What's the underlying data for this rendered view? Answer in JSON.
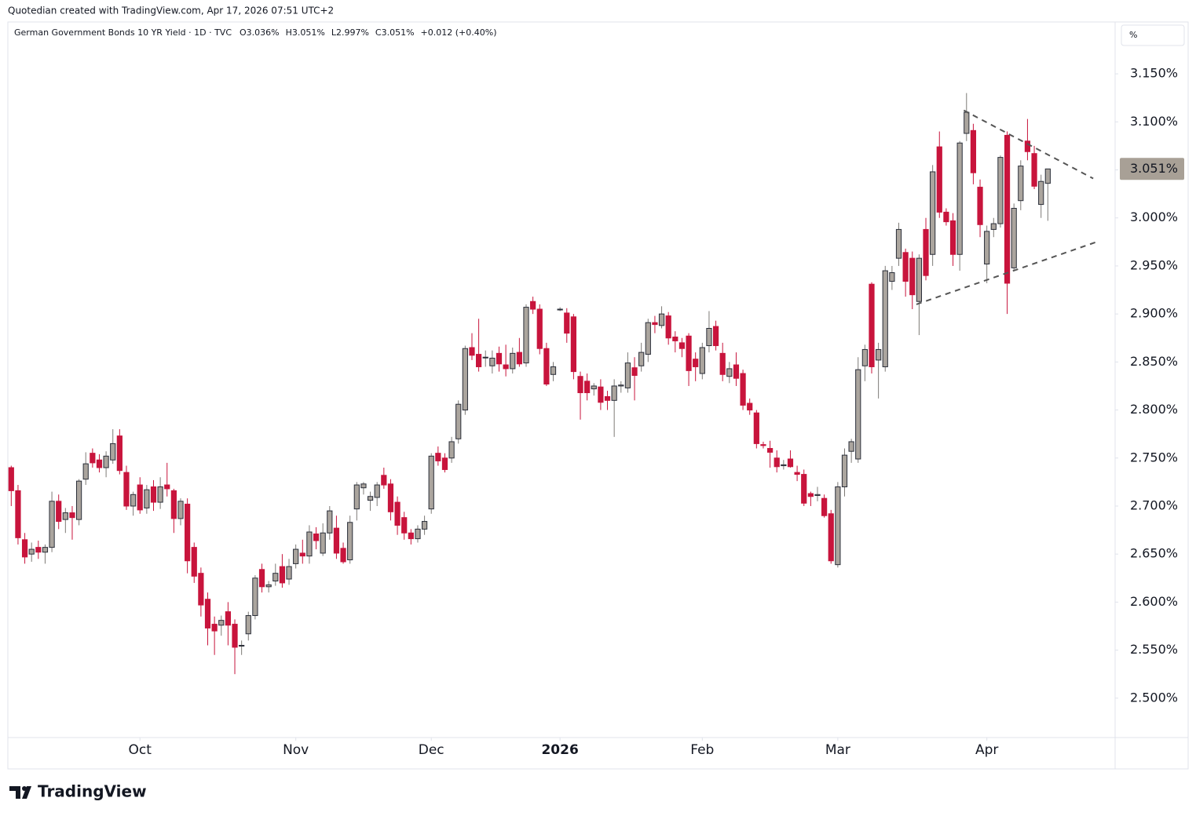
{
  "caption": "Quotedian created with TradingView.com, Apr 17, 2026 07:51 UTC+2",
  "brand": "TradingView",
  "scale_mode": "%",
  "chart_data": {
    "type": "candlestick",
    "title": "German Government Bonds 10 YR Yield · 1D · TVC",
    "legend_values": [
      "O3.036%",
      "H3.051%",
      "L2.997%",
      "C3.051%",
      "+0.012 (+0.40%)"
    ],
    "up_color": "#aba59e",
    "down_color": "#c8143c",
    "up_border": "#2a2e39",
    "open": [
      2.74,
      2.716,
      2.665,
      2.65,
      2.657,
      2.652,
      2.657,
      2.705,
      2.686,
      2.693,
      2.686,
      2.728,
      2.755,
      2.748,
      2.74,
      2.748,
      2.773,
      2.735,
      2.7,
      2.722,
      2.698,
      2.72,
      2.704,
      2.722,
      2.716,
      2.687,
      2.702,
      2.657,
      2.63,
      2.603,
      2.577,
      2.576,
      2.59,
      2.577,
      2.555,
      2.567,
      2.586,
      2.634,
      2.616,
      2.622,
      2.637,
      2.624,
      2.64,
      2.651,
      2.648,
      2.671,
      2.651,
      2.672,
      2.677,
      2.656,
      2.644,
      2.697,
      2.719,
      2.706,
      2.709,
      2.732,
      2.723,
      2.704,
      2.688,
      2.672,
      2.666,
      2.676,
      2.697,
      2.755,
      2.75,
      2.75,
      2.77,
      2.8,
      2.865,
      2.858,
      2.855,
      2.846,
      2.859,
      2.847,
      2.843,
      2.86,
      2.849,
      2.913,
      2.905,
      2.864,
      2.837,
      2.905,
      2.901,
      2.897,
      2.835,
      2.83,
      2.822,
      2.824,
      2.814,
      2.81,
      2.825,
      2.823,
      2.844,
      2.846,
      2.858,
      2.891,
      2.888,
      2.898,
      2.876,
      2.87,
      2.877,
      2.853,
      2.838,
      2.867,
      2.887,
      2.859,
      2.835,
      2.847,
      2.838,
      2.807,
      2.797,
      2.764,
      2.76,
      2.75,
      2.742,
      2.749,
      2.735,
      2.733,
      2.713,
      2.711,
      2.708,
      2.692,
      2.639,
      2.72,
      2.757,
      2.749,
      2.846,
      2.931,
      2.852,
      2.845,
      2.934,
      2.958,
      2.964,
      2.958,
      2.913,
      2.988,
      2.962,
      3.074,
      3.006,
      2.997,
      2.962,
      3.088,
      3.091,
      3.032,
      2.952,
      2.988,
      2.994,
      3.086,
      2.948,
      3.018,
      3.08,
      3.067,
      3.014,
      3.036
    ],
    "high": [
      2.742,
      2.722,
      2.672,
      2.662,
      2.664,
      2.66,
      2.715,
      2.712,
      2.698,
      2.7,
      2.728,
      2.756,
      2.76,
      2.754,
      2.757,
      2.78,
      2.78,
      2.742,
      2.715,
      2.73,
      2.722,
      2.727,
      2.73,
      2.745,
      2.718,
      2.708,
      2.708,
      2.662,
      2.636,
      2.61,
      2.585,
      2.586,
      2.6,
      2.582,
      2.56,
      2.59,
      2.628,
      2.64,
      2.622,
      2.64,
      2.65,
      2.645,
      2.66,
      2.665,
      2.68,
      2.678,
      2.682,
      2.7,
      2.69,
      2.662,
      2.69,
      2.725,
      2.725,
      2.715,
      2.725,
      2.74,
      2.728,
      2.71,
      2.694,
      2.676,
      2.68,
      2.69,
      2.755,
      2.762,
      2.755,
      2.772,
      2.81,
      2.867,
      2.88,
      2.895,
      2.862,
      2.862,
      2.866,
      2.868,
      2.865,
      2.875,
      2.91,
      2.918,
      2.91,
      2.87,
      2.85,
      2.907,
      2.906,
      2.9,
      2.84,
      2.838,
      2.828,
      2.832,
      2.82,
      2.832,
      2.83,
      2.86,
      2.855,
      2.87,
      2.895,
      2.898,
      2.908,
      2.902,
      2.882,
      2.875,
      2.88,
      2.86,
      2.87,
      2.903,
      2.893,
      2.87,
      2.85,
      2.86,
      2.842,
      2.812,
      2.8,
      2.767,
      2.768,
      2.758,
      2.748,
      2.758,
      2.742,
      2.738,
      2.715,
      2.72,
      2.712,
      2.696,
      2.725,
      2.76,
      2.77,
      2.855,
      2.868,
      2.933,
      2.87,
      2.95,
      2.95,
      2.995,
      2.968,
      2.965,
      2.962,
      3.0,
      3.055,
      3.09,
      3.01,
      3.005,
      3.08,
      3.13,
      3.098,
      3.04,
      2.992,
      3.0,
      3.065,
      3.09,
      3.015,
      3.06,
      3.103,
      3.075,
      3.045,
      3.051
    ],
    "low": [
      2.7,
      2.66,
      2.64,
      2.642,
      2.645,
      2.64,
      2.652,
      2.676,
      2.672,
      2.665,
      2.68,
      2.722,
      2.74,
      2.735,
      2.73,
      2.744,
      2.733,
      2.696,
      2.69,
      2.692,
      2.692,
      2.695,
      2.697,
      2.71,
      2.672,
      2.68,
      2.63,
      2.62,
      2.585,
      2.555,
      2.545,
      2.565,
      2.555,
      2.525,
      2.545,
      2.56,
      2.582,
      2.61,
      2.61,
      2.617,
      2.615,
      2.618,
      2.635,
      2.64,
      2.64,
      2.655,
      2.648,
      2.665,
      2.645,
      2.64,
      2.64,
      2.685,
      2.712,
      2.695,
      2.7,
      2.718,
      2.685,
      2.67,
      2.665,
      2.66,
      2.662,
      2.67,
      2.692,
      2.742,
      2.735,
      2.745,
      2.765,
      2.795,
      2.852,
      2.84,
      2.845,
      2.838,
      2.84,
      2.835,
      2.838,
      2.845,
      2.845,
      2.9,
      2.858,
      2.825,
      2.83,
      2.903,
      2.87,
      2.832,
      2.79,
      2.81,
      2.815,
      2.8,
      2.8,
      2.772,
      2.818,
      2.818,
      2.81,
      2.84,
      2.85,
      2.88,
      2.885,
      2.868,
      2.86,
      2.855,
      2.825,
      2.83,
      2.832,
      2.86,
      2.862,
      2.83,
      2.828,
      2.825,
      2.8,
      2.795,
      2.76,
      2.76,
      2.74,
      2.735,
      2.738,
      2.74,
      2.726,
      2.7,
      2.7,
      2.705,
      2.688,
      2.64,
      2.636,
      2.71,
      2.745,
      2.745,
      2.83,
      2.838,
      2.812,
      2.84,
      2.925,
      2.95,
      2.918,
      2.905,
      2.878,
      2.935,
      2.95,
      3.0,
      2.992,
      2.95,
      2.945,
      3.08,
      3.035,
      2.98,
      2.932,
      2.98,
      2.99,
      2.9,
      2.945,
      3.008,
      3.06,
      3.03,
      3.0,
      2.997
    ],
    "close": [
      2.716,
      2.667,
      2.647,
      2.655,
      2.652,
      2.657,
      2.705,
      2.684,
      2.693,
      2.688,
      2.726,
      2.744,
      2.745,
      2.74,
      2.752,
      2.765,
      2.737,
      2.7,
      2.712,
      2.696,
      2.717,
      2.704,
      2.72,
      2.718,
      2.687,
      2.705,
      2.643,
      2.627,
      2.597,
      2.573,
      2.57,
      2.581,
      2.576,
      2.553,
      2.555,
      2.586,
      2.625,
      2.616,
      2.618,
      2.63,
      2.62,
      2.637,
      2.655,
      2.648,
      2.673,
      2.664,
      2.672,
      2.695,
      2.651,
      2.642,
      2.683,
      2.722,
      2.723,
      2.71,
      2.722,
      2.722,
      2.694,
      2.68,
      2.672,
      2.666,
      2.676,
      2.684,
      2.752,
      2.747,
      2.738,
      2.767,
      2.806,
      2.864,
      2.857,
      2.845,
      2.855,
      2.854,
      2.848,
      2.843,
      2.859,
      2.848,
      2.907,
      2.905,
      2.864,
      2.827,
      2.845,
      2.905,
      2.88,
      2.84,
      2.818,
      2.818,
      2.825,
      2.808,
      2.81,
      2.825,
      2.826,
      2.849,
      2.836,
      2.86,
      2.891,
      2.889,
      2.9,
      2.875,
      2.872,
      2.864,
      2.841,
      2.845,
      2.865,
      2.885,
      2.867,
      2.837,
      2.843,
      2.833,
      2.805,
      2.8,
      2.765,
      2.763,
      2.756,
      2.741,
      2.743,
      2.741,
      2.733,
      2.703,
      2.71,
      2.712,
      2.69,
      2.643,
      2.72,
      2.753,
      2.767,
      2.842,
      2.863,
      2.845,
      2.863,
      2.945,
      2.943,
      2.988,
      2.934,
      2.92,
      2.958,
      2.94,
      3.048,
      3.006,
      2.996,
      2.962,
      3.078,
      3.11,
      3.047,
      2.993,
      2.986,
      2.994,
      3.063,
      2.932,
      3.01,
      3.054,
      3.069,
      3.033,
      3.038,
      3.051
    ],
    "xlim": [
      -0.5,
      162.7
    ],
    "xticks": [
      {
        "value": 19,
        "label": "Oct"
      },
      {
        "value": 42,
        "label": "Nov"
      },
      {
        "value": 62,
        "label": "Dec"
      },
      {
        "value": 81,
        "label": "2026"
      },
      {
        "value": 102,
        "label": "Feb"
      },
      {
        "value": 122,
        "label": "Mar"
      },
      {
        "value": 144,
        "label": "Apr"
      }
    ],
    "ylim": [
      2.459,
      3.204
    ],
    "yticks": [
      {
        "value": 2.5,
        "label": "2.500%"
      },
      {
        "value": 2.55,
        "label": "2.550%"
      },
      {
        "value": 2.6,
        "label": "2.600%"
      },
      {
        "value": 2.65,
        "label": "2.650%"
      },
      {
        "value": 2.7,
        "label": "2.700%"
      },
      {
        "value": 2.75,
        "label": "2.750%"
      },
      {
        "value": 2.8,
        "label": "2.800%"
      },
      {
        "value": 2.85,
        "label": "2.850%"
      },
      {
        "value": 2.9,
        "label": "2.900%"
      },
      {
        "value": 2.95,
        "label": "2.950%"
      },
      {
        "value": 3.0,
        "label": "3.000%"
      },
      {
        "value": 3.05,
        "label": "3.050%"
      },
      {
        "value": 3.1,
        "label": "3.100%"
      },
      {
        "value": 3.15,
        "label": "3.150%"
      }
    ],
    "last_price": {
      "value": 3.051,
      "label": "3.051%"
    },
    "trendlines": [
      {
        "x": [
          140.6,
          159.7
        ],
        "y": [
          3.112,
          3.041
        ]
      },
      {
        "x": [
          133.6,
          160.2
        ],
        "y": [
          2.91,
          2.975
        ]
      }
    ]
  }
}
